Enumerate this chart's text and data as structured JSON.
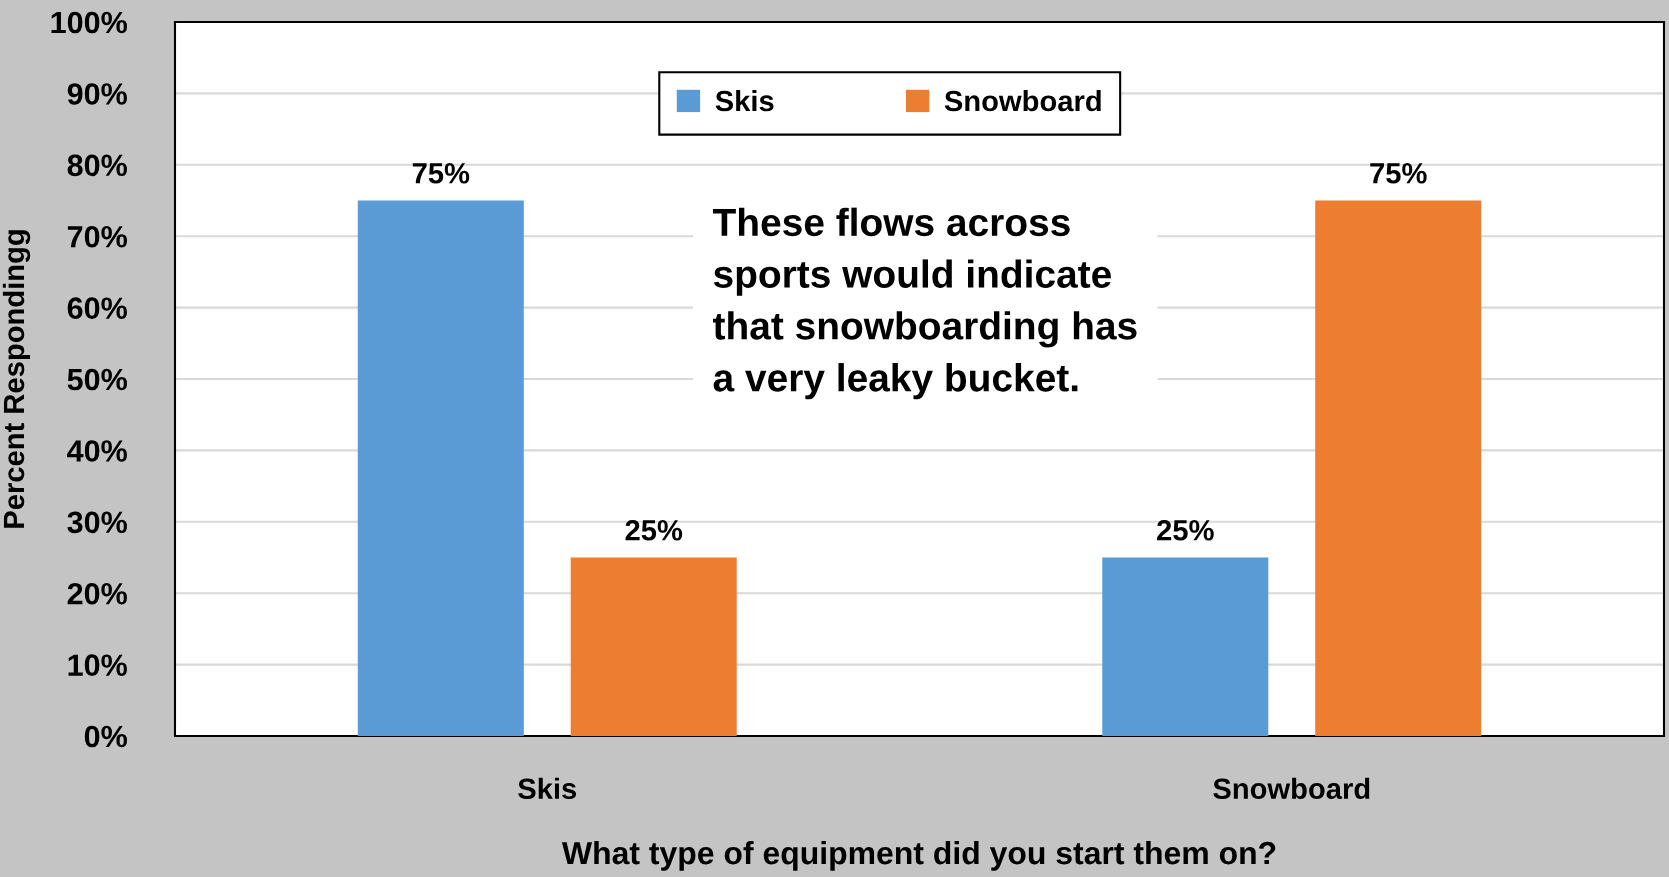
{
  "chart_data": {
    "type": "bar",
    "categories": [
      "Skis",
      "Snowboard"
    ],
    "series": [
      {
        "name": "Skis",
        "color": "#5b9bd5",
        "values": [
          75,
          25
        ]
      },
      {
        "name": "Snowboard",
        "color": "#ed7d31",
        "values": [
          25,
          75
        ]
      }
    ],
    "xlabel": "What type of equipment did you start them on?",
    "ylabel": "Percent Respondingg",
    "ylim": [
      0,
      100
    ],
    "yticks": [
      {
        "value": 0,
        "label": "0%"
      },
      {
        "value": 10,
        "label": "10%"
      },
      {
        "value": 20,
        "label": "20%"
      },
      {
        "value": 30,
        "label": "30%"
      },
      {
        "value": 40,
        "label": "40%"
      },
      {
        "value": 50,
        "label": "50%"
      },
      {
        "value": 60,
        "label": "60%"
      },
      {
        "value": 70,
        "label": "70%"
      },
      {
        "value": 80,
        "label": "80%"
      },
      {
        "value": 90,
        "label": "90%"
      },
      {
        "value": 100,
        "label": "100%"
      }
    ],
    "value_labels": [
      [
        "75%",
        "25%"
      ],
      [
        "25%",
        "75%"
      ]
    ],
    "annotations": [
      "These flows across sports would indicate that snowboarding has a very leaky bucket."
    ],
    "grid": "y",
    "legend": "top"
  }
}
